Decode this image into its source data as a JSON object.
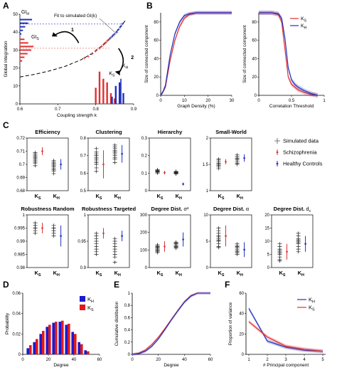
{
  "panel_letters": [
    "A",
    "B",
    "C",
    "D",
    "E",
    "F"
  ],
  "chart_data": [
    {
      "panel": "A",
      "type": "scatter",
      "xlabel": "Coupling strength k",
      "ylabel": "Global integration",
      "xlim": [
        0.6,
        0.9
      ],
      "ylim": [
        0,
        50
      ],
      "xticks": [
        "0.6",
        "0.7",
        "0.8",
        "0.9"
      ],
      "yticks": [
        "0",
        "10",
        "20",
        "30",
        "40",
        "50"
      ],
      "annotations": {
        "fit_label": "Fit to simulated GI(k)",
        "gi_h": "GI",
        "gi_h_sub": "H",
        "gi_s": "GI",
        "gi_s_sub": "S",
        "k_s": "K",
        "k_s_sub": "S",
        "k_h": "K",
        "k_h_sub": "H",
        "step1": "1",
        "step2": "2"
      },
      "colors": {
        "red": "#e03030",
        "blue": "#2030c0"
      },
      "fit_curve": {
        "x": [
          0.6,
          0.64,
          0.68,
          0.72,
          0.76,
          0.79,
          0.82,
          0.84,
          0.86,
          0.88
        ],
        "y": [
          15,
          16.5,
          18.5,
          21,
          24.5,
          28,
          33,
          37,
          41.5,
          47
        ]
      },
      "simulated_points_red": {
        "x": [
          0.77,
          0.78,
          0.79,
          0.8,
          0.81,
          0.815,
          0.82,
          0.825,
          0.83,
          0.835
        ],
        "y": [
          25.5,
          26.5,
          28,
          29.5,
          31,
          32,
          33,
          34,
          35,
          36
        ]
      },
      "simulated_points_blue": {
        "x": [
          0.84,
          0.845,
          0.85,
          0.855,
          0.86,
          0.865,
          0.87
        ],
        "y": [
          37,
          38,
          39,
          40,
          41.5,
          43,
          44.5
        ]
      },
      "gi_h_histogram": {
        "y": [
          47,
          45,
          43,
          41,
          39
        ],
        "length": [
          0.032,
          0.022,
          0.014,
          0.008,
          0.004
        ]
      },
      "gi_s_histogram": {
        "y": [
          36,
          34,
          32,
          30,
          28,
          26,
          24
        ],
        "length": [
          0.012,
          0.022,
          0.036,
          0.03,
          0.02,
          0.012,
          0.006
        ]
      },
      "k_s_histogram": {
        "x": [
          0.8,
          0.81,
          0.82,
          0.83,
          0.84,
          0.85
        ],
        "height": [
          9,
          18,
          14,
          12,
          6,
          3
        ]
      },
      "k_h_histogram": {
        "x": [
          0.84,
          0.85,
          0.86,
          0.87
        ],
        "height": [
          4,
          10,
          12,
          6
        ]
      },
      "k_h_marker": {
        "x": 0.855,
        "height": 14
      }
    },
    {
      "panel": "B-left",
      "type": "line",
      "xlabel": "Graph Density (%)",
      "ylabel": "Size of connected component",
      "xlim": [
        0,
        30
      ],
      "ylim": [
        0,
        90
      ],
      "xticks": [
        "0",
        "10",
        "20",
        "30"
      ],
      "yticks": [
        "0",
        "20",
        "40",
        "60",
        "80"
      ],
      "series": [
        {
          "color": "#e03030",
          "x": [
            0,
            1,
            2,
            4,
            6,
            8,
            10,
            12,
            15,
            20,
            30
          ],
          "y": [
            0,
            4,
            9,
            38,
            60,
            75,
            84,
            88,
            90,
            90,
            90
          ]
        },
        {
          "color": "#2030c0",
          "x": [
            0,
            1,
            2,
            4,
            6,
            8,
            10,
            12,
            15,
            20,
            30
          ],
          "y": [
            0,
            4,
            11,
            44,
            67,
            80,
            87,
            89,
            90,
            90,
            90
          ]
        }
      ]
    },
    {
      "panel": "B-right",
      "type": "line",
      "xlabel": "Correlation Threshold",
      "ylabel": "Size of connected component",
      "xlim": [
        0,
        1
      ],
      "ylim": [
        0,
        90
      ],
      "xticks": [
        "0",
        "0.5",
        "1"
      ],
      "yticks": [
        "0",
        "20",
        "40",
        "60",
        "80"
      ],
      "legend": {
        "position": "top-right",
        "entries": [
          {
            "label": "K",
            "sub": "S",
            "color": "#e03030"
          },
          {
            "label": "K",
            "sub": "H",
            "color": "#2030c0"
          }
        ]
      },
      "series": [
        {
          "color": "#e03030",
          "x": [
            0,
            0.2,
            0.3,
            0.35,
            0.4,
            0.45,
            0.5,
            0.55,
            0.6,
            0.7,
            0.8,
            0.9
          ],
          "y": [
            90,
            90,
            88,
            80,
            50,
            20,
            12,
            9,
            6,
            3,
            1,
            0
          ]
        },
        {
          "color": "#2030c0",
          "x": [
            0,
            0.2,
            0.3,
            0.35,
            0.4,
            0.45,
            0.5,
            0.55,
            0.6,
            0.7,
            0.8,
            0.9
          ],
          "y": [
            90,
            90,
            89,
            84,
            62,
            30,
            17,
            12,
            9,
            5,
            2,
            0
          ]
        }
      ]
    },
    {
      "panel": "C",
      "type": "scatter",
      "legend": {
        "position": "right",
        "entries": [
          {
            "label": "Simulated data",
            "color": "#555555",
            "marker": "cross"
          },
          {
            "label": "Schizophrenia",
            "color": "#e03030",
            "marker": "errorbar"
          },
          {
            "label": "Healthy Controls",
            "color": "#2030c0",
            "marker": "errorbar"
          }
        ]
      },
      "categories": [
        "K_S",
        "K_H"
      ],
      "category_labels": [
        {
          "main": "K",
          "sub": "S"
        },
        {
          "main": "K",
          "sub": "H"
        }
      ],
      "subplots": [
        {
          "title": "Efficiency",
          "ylim": [
            0.68,
            0.72
          ],
          "yticks": [
            "0.68",
            "0.69",
            "0.7",
            "0.71",
            "0.72"
          ],
          "sim_ks": [
            0.705,
            0.703,
            0.707,
            0.701,
            0.709,
            0.699,
            0.704,
            0.706,
            0.702,
            0.708
          ],
          "sim_kh": [
            0.699,
            0.697,
            0.701,
            0.695,
            0.703,
            0.693,
            0.698,
            0.7,
            0.696,
            0.702
          ],
          "schizo": {
            "mean": 0.71,
            "lo": 0.707,
            "hi": 0.713
          },
          "healthy": {
            "mean": 0.7,
            "lo": 0.696,
            "hi": 0.704
          }
        },
        {
          "title": "Clustering",
          "ylim": [
            0.5,
            0.8
          ],
          "yticks": [
            "0.5",
            "0.6",
            "0.7",
            "0.8"
          ],
          "sim_ks": [
            0.7,
            0.69,
            0.68,
            0.71,
            0.66,
            0.72,
            0.65,
            0.7,
            0.63,
            0.74,
            0.67,
            0.61
          ],
          "sim_kh": [
            0.73,
            0.72,
            0.71,
            0.74,
            0.69,
            0.75,
            0.68,
            0.72,
            0.7,
            0.76,
            0.66
          ],
          "schizo": {
            "mean": 0.65,
            "lo": 0.57,
            "hi": 0.73
          },
          "healthy": {
            "mean": 0.71,
            "lo": 0.66,
            "hi": 0.76
          }
        },
        {
          "title": "Hierarchy",
          "ylim": [
            0,
            0.3
          ],
          "yticks": [
            "0",
            "0.1",
            "0.2",
            "0.3"
          ],
          "sim_ks": [
            0.115,
            0.105,
            0.11,
            0.1,
            0.12,
            0.108,
            0.112
          ],
          "sim_kh": [
            0.105,
            0.1,
            0.095,
            0.11,
            0.098,
            0.103,
            0.108
          ],
          "schizo": {
            "mean": 0.103,
            "lo": 0.093,
            "hi": 0.113
          },
          "healthy": {
            "mean": 0.038,
            "lo": 0.03,
            "hi": 0.046
          }
        },
        {
          "title": "Small-World",
          "ylim": [
            1,
            2
          ],
          "yticks": [
            "1",
            "1.5",
            "2"
          ],
          "sim_ks": [
            1.55,
            1.5,
            1.6,
            1.45,
            1.52,
            1.58,
            1.48,
            1.42
          ],
          "sim_kh": [
            1.6,
            1.55,
            1.65,
            1.5,
            1.62,
            1.58,
            1.68,
            1.52
          ],
          "schizo": {
            "mean": 1.55,
            "lo": 1.5,
            "hi": 1.6
          },
          "healthy": {
            "mean": 1.62,
            "lo": 1.55,
            "hi": 1.69
          }
        },
        {
          "title": "Robustness Random",
          "ylim": [
            0.98,
            1.0
          ],
          "yticks": [
            "0.98",
            "0.985",
            "0.99",
            "0.995",
            "1"
          ],
          "sim_ks": [
            0.996,
            0.995,
            0.997,
            0.994,
            0.996,
            0.993,
            0.995
          ],
          "sim_kh": [
            0.995,
            0.994,
            0.996,
            0.993,
            0.995,
            0.992,
            0.994
          ],
          "schizo": {
            "mean": 0.995,
            "lo": 0.993,
            "hi": 0.997
          },
          "healthy": {
            "mean": 0.992,
            "lo": 0.988,
            "hi": 0.996
          }
        },
        {
          "title": "Robustness Targeted",
          "ylim": [
            0.9,
            1.0
          ],
          "yticks": [
            "0.9",
            "0.95",
            "1"
          ],
          "sim_ks": [
            0.95,
            0.94,
            0.96,
            0.93,
            0.955,
            0.945,
            0.935,
            0.965,
            0.925
          ],
          "sim_kh": [
            0.94,
            0.93,
            0.95,
            0.92,
            0.945,
            0.935,
            0.925,
            0.955,
            0.91
          ],
          "schizo": {
            "mean": 0.965,
            "lo": 0.955,
            "hi": 0.975
          },
          "healthy": {
            "mean": 0.96,
            "lo": 0.95,
            "hi": 0.97
          }
        },
        {
          "title": "Degree Dist.",
          "title_sup": "σ²",
          "ylim": [
            0,
            300
          ],
          "yticks": [
            "0",
            "100",
            "200",
            "300"
          ],
          "sim_ks": [
            110,
            100,
            120,
            90,
            130,
            95,
            105,
            115,
            85,
            125
          ],
          "sim_kh": [
            130,
            120,
            140,
            110,
            125,
            135,
            115,
            145
          ],
          "schizo": {
            "mean": 120,
            "lo": 90,
            "hi": 150
          },
          "healthy": {
            "mean": 160,
            "lo": 120,
            "hi": 200
          }
        },
        {
          "title": "Degree Dist.",
          "title_sup": "α",
          "ylim": [
            0,
            10
          ],
          "yticks": [
            "0",
            "5",
            "10"
          ],
          "sim_ks": [
            5.5,
            5,
            6,
            4.5,
            6.5,
            4,
            7,
            5.2,
            5.8,
            3.8,
            7.5
          ],
          "sim_kh": [
            3.5,
            3,
            4,
            2.5,
            4.5,
            3.2,
            3.8,
            2.8,
            4.2
          ],
          "schizo": {
            "mean": 6,
            "lo": 4,
            "hi": 8
          },
          "healthy": {
            "mean": 3.4,
            "lo": 2,
            "hi": 4.8
          }
        },
        {
          "title": "Degree Dist.",
          "title_sup": "d",
          "title_sub": "c",
          "ylim": [
            0,
            20
          ],
          "yticks": [
            "0",
            "5",
            "10",
            "15",
            "20"
          ],
          "sim_ks": [
            6,
            5,
            7,
            4,
            8,
            3,
            9,
            5.5,
            6.5,
            2.5
          ],
          "sim_kh": [
            10,
            9,
            11,
            8,
            12,
            7,
            13,
            9.5,
            10.5,
            6
          ],
          "schizo": {
            "mean": 6,
            "lo": 3,
            "hi": 9
          },
          "healthy": {
            "mean": 9,
            "lo": 6,
            "hi": 12
          }
        }
      ]
    },
    {
      "panel": "D",
      "type": "bar",
      "xlabel": "Degree",
      "ylabel": "Probability",
      "xlim": [
        0,
        60
      ],
      "ylim": [
        0,
        0.06
      ],
      "xticks": [
        "0",
        "20",
        "40",
        "60"
      ],
      "yticks": [
        "0",
        "0.02",
        "0.04",
        "0.06"
      ],
      "legend": {
        "position": "top-right",
        "entries": [
          {
            "label": "K",
            "sub": "H",
            "color": "#1a1ad0"
          },
          {
            "label": "K",
            "sub": "S",
            "color": "#e01a1a"
          }
        ]
      },
      "categories": [
        5,
        10,
        15,
        20,
        25,
        30,
        35,
        40,
        45,
        50
      ],
      "series": [
        {
          "color": "#1a1ad0",
          "values": [
            0.006,
            0.012,
            0.02,
            0.027,
            0.031,
            0.032,
            0.029,
            0.022,
            0.012,
            0.004
          ]
        },
        {
          "color": "#e01a1a",
          "values": [
            0.009,
            0.015,
            0.023,
            0.029,
            0.032,
            0.033,
            0.03,
            0.02,
            0.01,
            0.003
          ]
        }
      ]
    },
    {
      "panel": "E",
      "type": "line",
      "xlabel": "Degree",
      "ylabel": "Cumulative distribution",
      "xlim": [
        0,
        60
      ],
      "ylim": [
        0,
        1
      ],
      "xticks": [
        "0",
        "20",
        "40",
        "60"
      ],
      "yticks": [
        "0",
        "0.2",
        "0.4",
        "0.6",
        "0.8",
        "1"
      ],
      "series": [
        {
          "color": "#e03030",
          "x": [
            0,
            5,
            10,
            15,
            20,
            25,
            30,
            35,
            40,
            45,
            50,
            55,
            60
          ],
          "y": [
            0,
            0.02,
            0.07,
            0.16,
            0.28,
            0.42,
            0.57,
            0.72,
            0.86,
            0.96,
            1,
            1,
            1
          ]
        },
        {
          "color": "#2030c0",
          "x": [
            0,
            5,
            10,
            15,
            20,
            25,
            30,
            35,
            40,
            45,
            50,
            55,
            60
          ],
          "y": [
            0,
            0.01,
            0.05,
            0.13,
            0.25,
            0.4,
            0.56,
            0.71,
            0.85,
            0.95,
            1,
            1,
            1
          ]
        }
      ]
    },
    {
      "panel": "F",
      "type": "line",
      "xlabel": "# Principal component",
      "ylabel": "Proportion of variance",
      "xlim": [
        1,
        5
      ],
      "ylim": [
        0,
        60
      ],
      "xticks": [
        "1",
        "2",
        "3",
        "4",
        "5"
      ],
      "yticks": [
        "0",
        "20",
        "40",
        "60"
      ],
      "legend": {
        "position": "top-right",
        "entries": [
          {
            "label": "K",
            "sub": "H",
            "color": "#2030c0"
          },
          {
            "label": "K",
            "sub": "S",
            "color": "#e03030"
          }
        ]
      },
      "series": [
        {
          "color": "#2030c0",
          "x": [
            1,
            2,
            3,
            4,
            5
          ],
          "y": [
            45,
            13,
            7,
            4,
            3
          ]
        },
        {
          "color": "#e03030",
          "x": [
            1,
            2,
            3,
            4,
            5
          ],
          "y": [
            32,
            17,
            8,
            5,
            3
          ]
        }
      ]
    }
  ]
}
